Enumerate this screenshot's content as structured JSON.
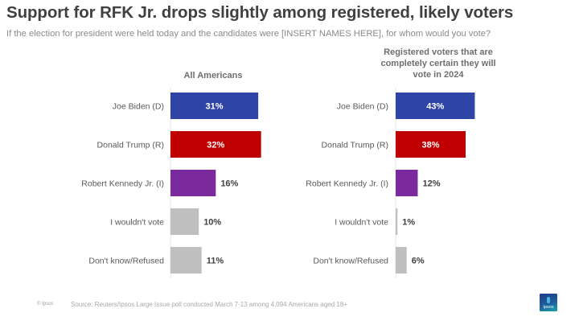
{
  "title": "Support for RFK Jr. drops slightly among registered, likely voters",
  "subtitle": "If the election for president were held today and the candidates were [INSERT NAMES HERE], for whom would you vote?",
  "footer": {
    "logo_text": "© Ipsos",
    "source": "Source: Reuters/Ipsos Large Issue poll conducted March 7-13 among 4,094 Americans aged 18+",
    "brand_label": "Ipsos"
  },
  "colors": {
    "biden": "#2e45a6",
    "trump": "#c00000",
    "kennedy": "#7b2a9e",
    "other": "#bfbfbf",
    "label_text": "#595959",
    "value_text": "#404040"
  },
  "chart_data": [
    {
      "type": "bar",
      "orientation": "horizontal",
      "title": "All Americans",
      "categories": [
        "Joe Biden (D)",
        "Donald Trump (R)",
        "Robert Kennedy Jr. (I)",
        "I wouldn't vote",
        "Don't know/Refused"
      ],
      "values": [
        31,
        32,
        16,
        10,
        11
      ],
      "value_labels": [
        "31%",
        "32%",
        "16%",
        "10%",
        "11%"
      ],
      "unit": "%",
      "xlim": [
        0,
        32
      ],
      "grid": false,
      "legend": "none"
    },
    {
      "type": "bar",
      "orientation": "horizontal",
      "title": "Registered voters that are completely certain they will vote in 2024",
      "title_lines": [
        "Registered voters that are",
        "completely certain they will",
        "vote in 2024"
      ],
      "categories": [
        "Joe Biden (D)",
        "Donald Trump (R)",
        "Robert Kennedy Jr. (I)",
        "I wouldn't vote",
        "Don't know/Refused"
      ],
      "values": [
        43,
        38,
        12,
        1,
        6
      ],
      "value_labels": [
        "43%",
        "38%",
        "12%",
        "1%",
        "6%"
      ],
      "unit": "%",
      "xlim": [
        0,
        43
      ],
      "grid": false,
      "legend": "none"
    }
  ]
}
